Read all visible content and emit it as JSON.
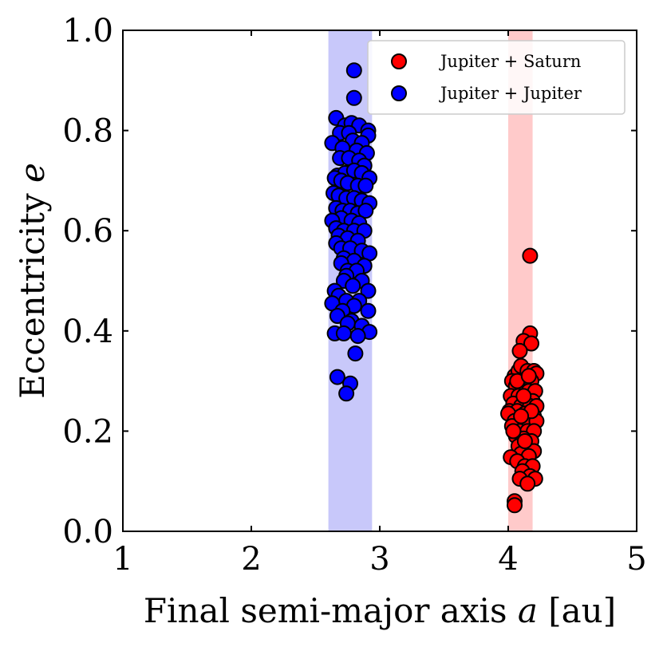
{
  "chart_data": {
    "type": "scatter",
    "xlabel_prefix": "Final semi-major axis ",
    "xlabel_var": "a",
    "xlabel_suffix": " [au]",
    "ylabel_prefix": "Eccentricity ",
    "ylabel_var": "e",
    "xlim": [
      1,
      5
    ],
    "ylim": [
      0,
      1
    ],
    "x_ticks": [
      1,
      2,
      3,
      4,
      5
    ],
    "x_tick_labels": [
      "1",
      "2",
      "3",
      "4",
      "5"
    ],
    "y_ticks": [
      0,
      0.2,
      0.4,
      0.6,
      0.8,
      1.0
    ],
    "y_tick_labels": [
      "0.0",
      "0.2",
      "0.4",
      "0.6",
      "0.8",
      "1.0"
    ],
    "legend_position": "top-right",
    "bands": [
      {
        "x_range": [
          2.6,
          2.94
        ],
        "color": "#c8c8fa"
      },
      {
        "x_range": [
          4.0,
          4.19
        ],
        "color": "#ffcaca"
      }
    ],
    "series": [
      {
        "name": "Jupiter + Saturn",
        "color": "#ff0000",
        "edge_color": "#000000",
        "points": [
          [
            4.17,
            0.55
          ],
          [
            4.17,
            0.395
          ],
          [
            4.12,
            0.38
          ],
          [
            4.18,
            0.375
          ],
          [
            4.09,
            0.36
          ],
          [
            4.05,
            0.31
          ],
          [
            4.08,
            0.32
          ],
          [
            4.1,
            0.33
          ],
          [
            4.15,
            0.32
          ],
          [
            4.2,
            0.32
          ],
          [
            4.22,
            0.315
          ],
          [
            4.03,
            0.3
          ],
          [
            4.13,
            0.3
          ],
          [
            4.18,
            0.3
          ],
          [
            4.06,
            0.29
          ],
          [
            4.11,
            0.28
          ],
          [
            4.16,
            0.28
          ],
          [
            4.21,
            0.28
          ],
          [
            4.02,
            0.27
          ],
          [
            4.08,
            0.27
          ],
          [
            4.14,
            0.26
          ],
          [
            4.19,
            0.26
          ],
          [
            4.04,
            0.255
          ],
          [
            4.1,
            0.25
          ],
          [
            4.17,
            0.25
          ],
          [
            4.22,
            0.25
          ],
          [
            4.01,
            0.24
          ],
          [
            4.07,
            0.24
          ],
          [
            4.13,
            0.235
          ],
          [
            4.2,
            0.23
          ],
          [
            4.0,
            0.235
          ],
          [
            4.05,
            0.22
          ],
          [
            4.11,
            0.22
          ],
          [
            4.16,
            0.22
          ],
          [
            4.22,
            0.22
          ],
          [
            4.03,
            0.21
          ],
          [
            4.09,
            0.2
          ],
          [
            4.15,
            0.2
          ],
          [
            4.2,
            0.2
          ],
          [
            4.06,
            0.19
          ],
          [
            4.12,
            0.185
          ],
          [
            4.18,
            0.18
          ],
          [
            4.08,
            0.17
          ],
          [
            4.14,
            0.165
          ],
          [
            4.2,
            0.16
          ],
          [
            4.1,
            0.155
          ],
          [
            4.16,
            0.15
          ],
          [
            4.02,
            0.148
          ],
          [
            4.07,
            0.14
          ],
          [
            4.13,
            0.13
          ],
          [
            4.19,
            0.13
          ],
          [
            4.11,
            0.12
          ],
          [
            4.17,
            0.11
          ],
          [
            4.09,
            0.105
          ],
          [
            4.21,
            0.105
          ],
          [
            4.15,
            0.095
          ],
          [
            4.05,
            0.06
          ],
          [
            4.05,
            0.052
          ],
          [
            4.12,
            0.27
          ],
          [
            4.07,
            0.3
          ],
          [
            4.16,
            0.31
          ],
          [
            4.04,
            0.2
          ],
          [
            4.18,
            0.24
          ],
          [
            4.1,
            0.23
          ],
          [
            4.13,
            0.18
          ]
        ]
      },
      {
        "name": "Jupiter + Jupiter",
        "color": "#0000ff",
        "edge_color": "#000000",
        "points": [
          [
            2.8,
            0.92
          ],
          [
            2.8,
            0.865
          ],
          [
            2.66,
            0.825
          ],
          [
            2.73,
            0.81
          ],
          [
            2.78,
            0.815
          ],
          [
            2.84,
            0.81
          ],
          [
            2.91,
            0.8
          ],
          [
            2.69,
            0.795
          ],
          [
            2.76,
            0.795
          ],
          [
            2.91,
            0.79
          ],
          [
            2.63,
            0.775
          ],
          [
            2.79,
            0.78
          ],
          [
            2.86,
            0.775
          ],
          [
            2.71,
            0.765
          ],
          [
            2.82,
            0.76
          ],
          [
            2.9,
            0.755
          ],
          [
            2.69,
            0.745
          ],
          [
            2.76,
            0.745
          ],
          [
            2.84,
            0.74
          ],
          [
            2.88,
            0.73
          ],
          [
            2.67,
            0.71
          ],
          [
            2.73,
            0.715
          ],
          [
            2.8,
            0.72
          ],
          [
            2.86,
            0.715
          ],
          [
            2.92,
            0.705
          ],
          [
            2.65,
            0.705
          ],
          [
            2.7,
            0.7
          ],
          [
            2.75,
            0.695
          ],
          [
            2.83,
            0.69
          ],
          [
            2.89,
            0.69
          ],
          [
            2.64,
            0.675
          ],
          [
            2.68,
            0.67
          ],
          [
            2.74,
            0.665
          ],
          [
            2.8,
            0.665
          ],
          [
            2.86,
            0.66
          ],
          [
            2.92,
            0.655
          ],
          [
            2.66,
            0.645
          ],
          [
            2.71,
            0.64
          ],
          [
            2.77,
            0.64
          ],
          [
            2.83,
            0.635
          ],
          [
            2.89,
            0.64
          ],
          [
            2.7,
            0.625
          ],
          [
            2.63,
            0.62
          ],
          [
            2.78,
            0.62
          ],
          [
            2.84,
            0.615
          ],
          [
            2.66,
            0.605
          ],
          [
            2.72,
            0.6
          ],
          [
            2.8,
            0.6
          ],
          [
            2.88,
            0.6
          ],
          [
            2.68,
            0.59
          ],
          [
            2.75,
            0.585
          ],
          [
            2.83,
            0.58
          ],
          [
            2.66,
            0.575
          ],
          [
            2.7,
            0.565
          ],
          [
            2.77,
            0.565
          ],
          [
            2.86,
            0.56
          ],
          [
            2.92,
            0.555
          ],
          [
            2.72,
            0.545
          ],
          [
            2.8,
            0.54
          ],
          [
            2.7,
            0.535
          ],
          [
            2.88,
            0.53
          ],
          [
            2.75,
            0.52
          ],
          [
            2.82,
            0.52
          ],
          [
            2.74,
            0.51
          ],
          [
            2.72,
            0.5
          ],
          [
            2.86,
            0.5
          ],
          [
            2.79,
            0.49
          ],
          [
            2.91,
            0.48
          ],
          [
            2.65,
            0.48
          ],
          [
            2.68,
            0.47
          ],
          [
            2.74,
            0.46
          ],
          [
            2.84,
            0.46
          ],
          [
            2.63,
            0.455
          ],
          [
            2.8,
            0.45
          ],
          [
            2.71,
            0.44
          ],
          [
            2.91,
            0.44
          ],
          [
            2.67,
            0.43
          ],
          [
            2.78,
            0.42
          ],
          [
            2.75,
            0.415
          ],
          [
            2.86,
            0.41
          ],
          [
            2.65,
            0.395
          ],
          [
            2.72,
            0.395
          ],
          [
            2.92,
            0.398
          ],
          [
            2.83,
            0.39
          ],
          [
            2.81,
            0.355
          ],
          [
            2.67,
            0.308
          ],
          [
            2.77,
            0.295
          ],
          [
            2.74,
            0.275
          ]
        ]
      }
    ]
  }
}
